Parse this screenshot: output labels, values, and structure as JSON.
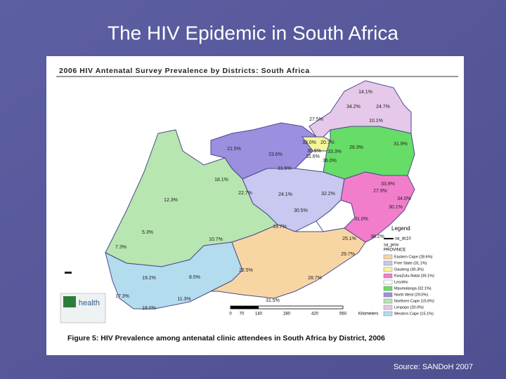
{
  "title": "The HIV Epidemic in South Africa",
  "map": {
    "heading": "2006 HIV Antenatal Survey Prevalence by Districts: South Africa",
    "district_labels": [
      "14.1%",
      "34.2%",
      "24.7%",
      "27.5%",
      "10.1%",
      "33.0%",
      "20.7%",
      "21.5%",
      "23.6%",
      "30.6%",
      "33.3%",
      "26.3%",
      "31.6%",
      "36.0%",
      "31.9%",
      "31.5%",
      "18.1%",
      "33.9%",
      "22.7%",
      "24.1%",
      "32.2%",
      "27.9%",
      "12.3%",
      "34.0%",
      "30.5%",
      "30.1%",
      "31.0%",
      "5.3%",
      "19.7%",
      "25.1%",
      "38.2%",
      "10.7%",
      "7.3%",
      "29.7%",
      "22.5%",
      "19.2%",
      "8.5%",
      "28.7%",
      "17.3%",
      "11.3%",
      "31.5%",
      "18.0%"
    ],
    "legend": {
      "title": "Legend",
      "layer1": "sa_dc10",
      "layer2": "sa_prov",
      "field": "PROVINCE",
      "items": [
        {
          "label": "Eastern Cape (28.6%)",
          "color": "#f8d6a4"
        },
        {
          "label": "Free State (31.1%)",
          "color": "#c8c8f0"
        },
        {
          "label": "Gauteng (30.3%)",
          "color": "#f4f49a"
        },
        {
          "label": "KwaZulu-Natal (39.1%)",
          "color": "#f27ecb"
        },
        {
          "label": "Lesotho",
          "color": "#ffffff"
        },
        {
          "label": "Mpumalanga (32.1%)",
          "color": "#66dd66"
        },
        {
          "label": "North West (29.0%)",
          "color": "#9b8fe0"
        },
        {
          "label": "Northern Cape (15.6%)",
          "color": "#b7e6b0"
        },
        {
          "label": "Limpopo (20.0%)",
          "color": "#e6c8ea"
        },
        {
          "label": "Western Cape (15.1%)",
          "color": "#b4dcef"
        }
      ]
    },
    "scale": [
      "0",
      "70",
      "140",
      "280",
      "420",
      "560",
      "Kilometers"
    ],
    "logo": "health",
    "caption": "Figure 5: HIV Prevalence among antenatal clinic attendees in South Africa by District, 2006"
  },
  "source": "Source: SANDoH 2007"
}
